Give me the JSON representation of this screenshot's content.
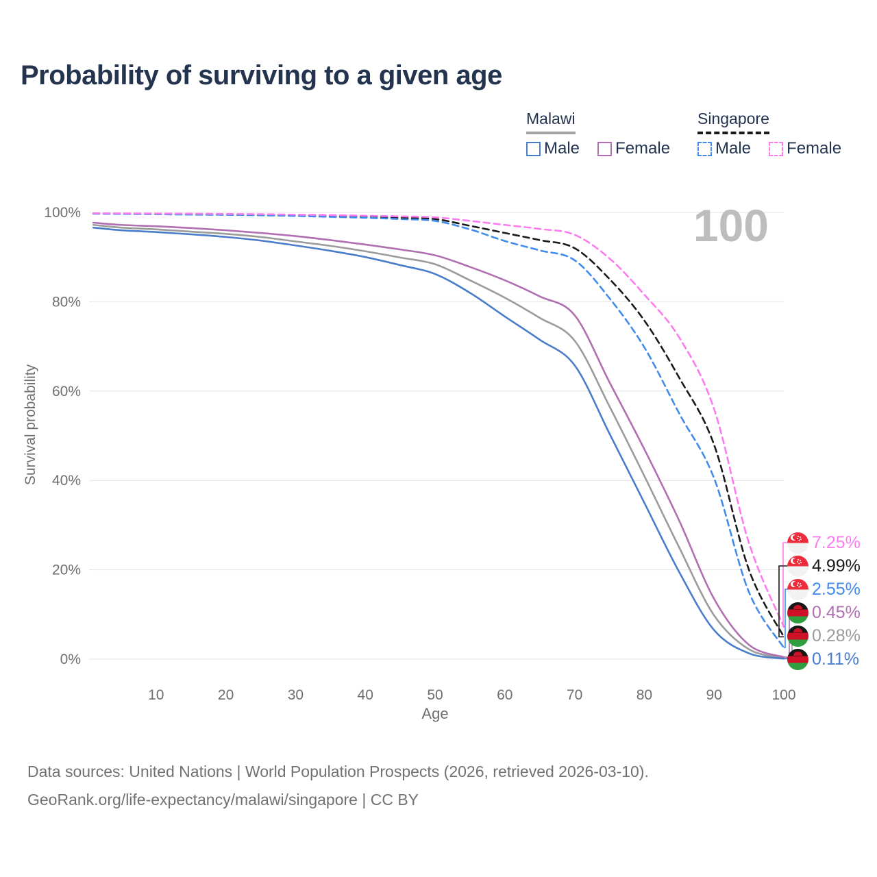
{
  "title": "Probability of surviving to a given age",
  "legend": {
    "groups": [
      {
        "label": "Malawi",
        "underline_color": "#a3a3a3",
        "underline_style": "solid",
        "items": [
          {
            "label": "Male",
            "color": "#4a7dc9",
            "style": "solid"
          },
          {
            "label": "Female",
            "color": "#b06fb0",
            "style": "solid"
          }
        ]
      },
      {
        "label": "Singapore",
        "underline_color": "#1a1a1a",
        "underline_style": "dashed",
        "items": [
          {
            "label": "Male",
            "color": "#418ceb",
            "style": "dashed"
          },
          {
            "label": "Female",
            "color": "#fc7cf0",
            "style": "dashed"
          }
        ]
      }
    ]
  },
  "chart_data": {
    "type": "line",
    "title": "Probability of surviving to a given age",
    "xlabel": "Age",
    "ylabel": "Survival probability",
    "xlim": [
      0,
      100
    ],
    "ylim": [
      0,
      100
    ],
    "x_ticks": [
      10,
      20,
      30,
      40,
      50,
      60,
      70,
      80,
      90,
      100
    ],
    "y_ticks": [
      0,
      20,
      40,
      60,
      80,
      100
    ],
    "y_tick_suffix": "%",
    "grid": "horizontal-only",
    "gridline_color": "#e4e4e4",
    "axis_text_color": "#6e6e6e",
    "annotation": {
      "text": "100",
      "meaning": "highlighted age",
      "color": "#bdbdbd"
    },
    "ages": [
      1,
      5,
      10,
      15,
      20,
      25,
      30,
      35,
      40,
      45,
      50,
      55,
      60,
      65,
      70,
      75,
      80,
      85,
      90,
      95,
      100
    ],
    "series": [
      {
        "name": "Malawi (both sexes)",
        "country": "Malawi",
        "sex": "Both",
        "line": "solid",
        "color": "#9b9b9b",
        "values": [
          97.2,
          96.6,
          96.2,
          95.7,
          95.2,
          94.5,
          93.5,
          92.5,
          91.3,
          89.9,
          88.4,
          84.8,
          80.9,
          76.4,
          71.3,
          56.6,
          41.0,
          25.0,
          9.8,
          2.2,
          0.28
        ]
      },
      {
        "name": "Malawi Female",
        "country": "Malawi",
        "sex": "Female",
        "line": "solid",
        "color": "#b06fb0",
        "values": [
          97.7,
          97.2,
          96.9,
          96.5,
          96.0,
          95.4,
          94.7,
          93.8,
          92.8,
          91.7,
          90.4,
          87.8,
          84.8,
          81.2,
          77.0,
          62.0,
          47.0,
          31.0,
          13.5,
          3.2,
          0.45
        ]
      },
      {
        "name": "Malawi Male",
        "country": "Malawi",
        "sex": "Male",
        "line": "solid",
        "color": "#4a7dc9",
        "values": [
          96.6,
          96.0,
          95.6,
          95.1,
          94.5,
          93.7,
          92.6,
          91.4,
          90.0,
          88.2,
          86.2,
          82.0,
          76.7,
          71.5,
          65.8,
          50.5,
          35.0,
          19.5,
          6.5,
          1.3,
          0.11
        ]
      },
      {
        "name": "Singapore (both sexes)",
        "country": "Singapore",
        "sex": "Both",
        "line": "dashed",
        "color": "#1a1a1a",
        "values": [
          99.75,
          99.7,
          99.65,
          99.6,
          99.55,
          99.45,
          99.35,
          99.2,
          99.0,
          98.75,
          98.5,
          97.0,
          95.4,
          93.8,
          92.0,
          85.1,
          75.8,
          63.0,
          48.0,
          20.0,
          4.99
        ]
      },
      {
        "name": "Singapore Male",
        "country": "Singapore",
        "sex": "Male",
        "line": "dashed",
        "color": "#418ceb",
        "values": [
          99.7,
          99.65,
          99.6,
          99.5,
          99.45,
          99.35,
          99.2,
          99.0,
          98.8,
          98.5,
          98.1,
          96.2,
          93.6,
          91.5,
          89.3,
          80.8,
          69.8,
          55.0,
          40.5,
          15.0,
          2.55
        ]
      },
      {
        "name": "Singapore Female",
        "country": "Singapore",
        "sex": "Female",
        "line": "dashed",
        "color": "#fc7cf0",
        "values": [
          99.8,
          99.77,
          99.73,
          99.7,
          99.65,
          99.6,
          99.5,
          99.4,
          99.25,
          99.1,
          98.9,
          98.1,
          97.2,
          96.3,
          95.0,
          89.7,
          81.6,
          72.0,
          56.0,
          26.0,
          7.25
        ]
      }
    ]
  },
  "end_labels": [
    {
      "value": "7.25%",
      "series": "Singapore Female",
      "flag": "singapore",
      "color": "#fc7cf0",
      "end_pct": 7.25
    },
    {
      "value": "4.99%",
      "series": "Singapore (both sexes)",
      "flag": "singapore",
      "color": "#1a1a1a",
      "end_pct": 4.99
    },
    {
      "value": "2.55%",
      "series": "Singapore Male",
      "flag": "singapore",
      "color": "#418ceb",
      "end_pct": 2.55
    },
    {
      "value": "0.45%",
      "series": "Malawi Female",
      "flag": "malawi",
      "color": "#b06fb0",
      "end_pct": 0.45
    },
    {
      "value": "0.28%",
      "series": "Malawi (both sexes)",
      "flag": "malawi",
      "color": "#9b9b9b",
      "end_pct": 0.28
    },
    {
      "value": "0.11%",
      "series": "Malawi Male",
      "flag": "malawi",
      "color": "#4a7dc9",
      "end_pct": 0.11
    }
  ],
  "footer": {
    "line1": "Data sources: United Nations | World Population Prospects (2026, retrieved 2026-03-10).",
    "line2": "GeoRank.org/life-expectancy/malawi/singapore | CC BY"
  }
}
